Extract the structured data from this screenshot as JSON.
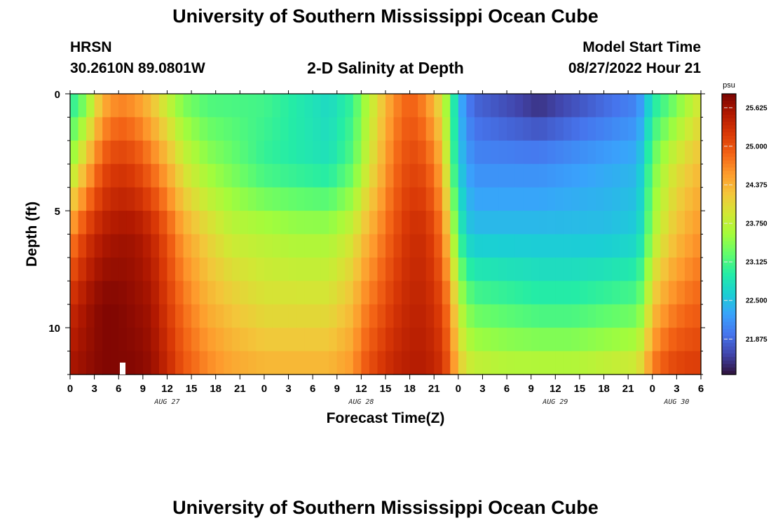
{
  "header": {
    "title": "University of Southern Mississippi Ocean Cube",
    "station": "HRSN",
    "location": "30.2610N  89.0801W",
    "subtitle": "2-D Salinity at Depth",
    "model_label": "Model Start Time",
    "model_time": "08/27/2022 Hour 21"
  },
  "footer": {
    "title": "University of Southern Mississippi Ocean Cube"
  },
  "colors": {
    "background": "#ffffff",
    "text": "#000000",
    "colormap": [
      "#30123b",
      "#4145ab",
      "#4675ed",
      "#39a2fc",
      "#1bcfd4",
      "#24eca6",
      "#61fc6c",
      "#a4fc3b",
      "#d1e834",
      "#f3c63a",
      "#fe9b2d",
      "#f36315",
      "#d93806",
      "#b11901",
      "#7a0402"
    ]
  },
  "chart_data": {
    "type": "heatmap",
    "xlabel": "Forecast Time(Z)",
    "ylabel": "Depth (ft)",
    "x_ticks": [
      "0",
      "3",
      "6",
      "9",
      "12",
      "15",
      "18",
      "21",
      "0",
      "3",
      "6",
      "9",
      "12",
      "15",
      "18",
      "21",
      "0",
      "3",
      "6",
      "9",
      "12",
      "15",
      "18",
      "21",
      "0",
      "3",
      "6"
    ],
    "day_labels": [
      "AUG 27",
      "AUG 28",
      "AUG 29",
      "AUG 30"
    ],
    "y_ticks": [
      "0",
      "5",
      "10"
    ],
    "xlim_hours": [
      0,
      78
    ],
    "ylim_ft": [
      0,
      12
    ],
    "colorbar": {
      "unit": "psu",
      "ticks": [
        "25.625",
        "25.000",
        "24.375",
        "23.750",
        "23.125",
        "22.500",
        "21.875"
      ],
      "range": [
        21.3,
        25.85
      ]
    },
    "model_start_hour": 6.5,
    "salinity_keyframes": {
      "hours": [
        0,
        2,
        4,
        6,
        8,
        10,
        12,
        14,
        17,
        20,
        24,
        28,
        32,
        35,
        36,
        38,
        40,
        42,
        44,
        46,
        47,
        48,
        49,
        50,
        54,
        58,
        62,
        66,
        70,
        71,
        72,
        74,
        76,
        78
      ],
      "depths_ft": [
        0,
        3,
        6,
        9,
        12
      ],
      "values": [
        [
          22.8,
          23.3,
          24.3,
          24.6,
          24.5,
          24.2,
          23.7,
          23.3,
          23.1,
          23.1,
          23.1,
          22.9,
          22.7,
          23.0,
          23.4,
          24.0,
          24.6,
          24.9,
          24.6,
          23.9,
          23.2,
          22.5,
          22.0,
          21.8,
          21.6,
          21.4,
          21.6,
          21.8,
          22.0,
          22.3,
          22.8,
          23.1,
          23.5,
          23.9
        ],
        [
          23.5,
          24.3,
          25.0,
          25.2,
          25.1,
          24.8,
          24.4,
          23.9,
          23.5,
          23.3,
          23.0,
          22.9,
          22.8,
          23.2,
          23.6,
          24.2,
          24.8,
          25.1,
          25.0,
          24.4,
          23.4,
          22.6,
          22.3,
          22.1,
          22.1,
          22.1,
          22.2,
          22.3,
          22.4,
          22.7,
          23.3,
          23.8,
          24.1,
          24.3
        ],
        [
          24.6,
          25.2,
          25.5,
          25.6,
          25.6,
          25.4,
          25.0,
          24.5,
          24.1,
          23.8,
          23.7,
          23.6,
          23.6,
          23.9,
          24.2,
          24.6,
          25.0,
          25.3,
          25.3,
          24.8,
          24.0,
          23.1,
          22.6,
          22.5,
          22.5,
          22.5,
          22.5,
          22.5,
          22.6,
          22.9,
          23.6,
          24.1,
          24.4,
          24.6
        ],
        [
          25.3,
          25.6,
          25.8,
          25.8,
          25.7,
          25.6,
          25.2,
          24.8,
          24.4,
          24.2,
          24.0,
          24.0,
          24.0,
          24.3,
          24.6,
          24.9,
          25.2,
          25.4,
          25.4,
          25.1,
          24.6,
          23.8,
          23.4,
          23.2,
          23.1,
          23.0,
          23.0,
          23.1,
          23.2,
          23.5,
          24.2,
          24.6,
          24.8,
          24.9
        ],
        [
          25.6,
          25.7,
          25.8,
          25.8,
          25.8,
          25.7,
          25.4,
          25.0,
          24.7,
          24.5,
          24.4,
          24.4,
          24.4,
          24.6,
          24.9,
          25.2,
          25.4,
          25.5,
          25.5,
          25.3,
          24.9,
          24.3,
          24.0,
          23.9,
          23.8,
          23.8,
          23.8,
          23.9,
          24.0,
          24.3,
          24.8,
          25.1,
          25.2,
          25.2
        ]
      ]
    }
  }
}
